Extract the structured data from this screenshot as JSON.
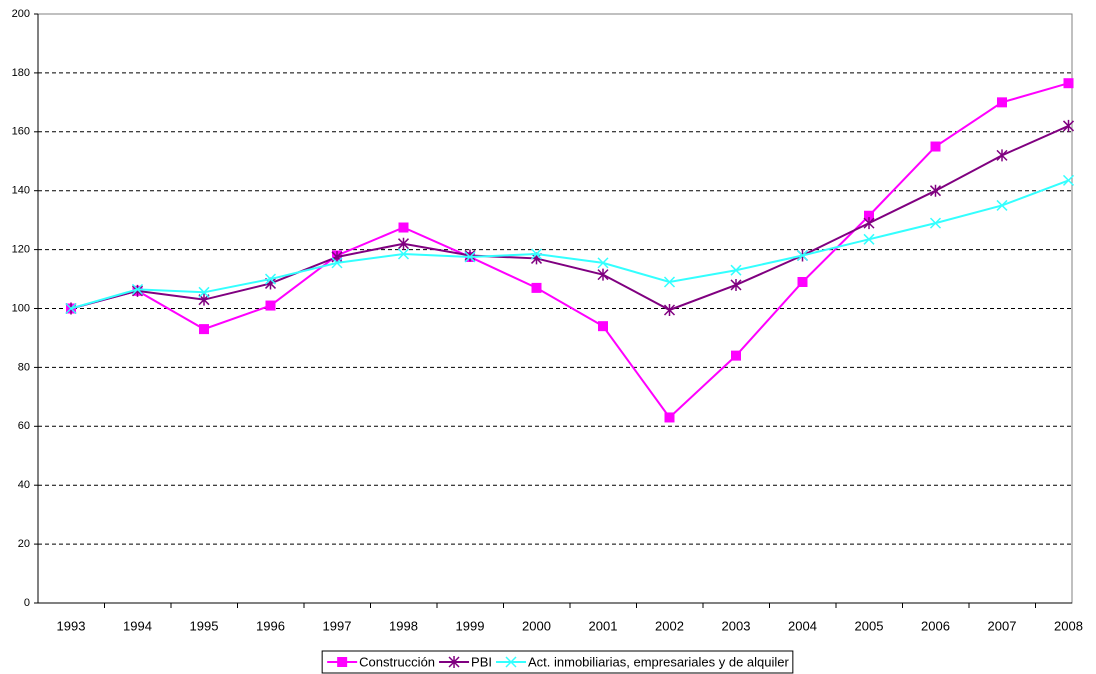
{
  "chart_data": {
    "type": "line",
    "categories": [
      "1993",
      "1994",
      "1995",
      "1996",
      "1997",
      "1998",
      "1999",
      "2000",
      "2001",
      "2002",
      "2003",
      "2004",
      "2005",
      "2006",
      "2007",
      "2008"
    ],
    "series": [
      {
        "name": "Construcción",
        "color": "#ff00ff",
        "marker": "square",
        "values": [
          100,
          106,
          93,
          101,
          118,
          127.5,
          117.5,
          107,
          94,
          63,
          84,
          109,
          131.5,
          155,
          170,
          176.5
        ]
      },
      {
        "name": "PBI",
        "color": "#800080",
        "marker": "star",
        "values": [
          100,
          106,
          103,
          108.5,
          117.5,
          122,
          118,
          117,
          111.5,
          99.5,
          108,
          118,
          129,
          140,
          152,
          162
        ]
      },
      {
        "name": "Act. inmobiliarias, empresariales y de alquiler",
        "color": "#33ffff",
        "marker": "x",
        "values": [
          100,
          106.5,
          105.5,
          110,
          115.5,
          118.5,
          117.5,
          118.5,
          115.5,
          109,
          113,
          118,
          123.5,
          129,
          135,
          143.5
        ]
      }
    ],
    "ylim": [
      0,
      200
    ],
    "yticks": [
      0,
      20,
      40,
      60,
      80,
      100,
      120,
      140,
      160,
      180,
      200
    ],
    "grid": true,
    "legend": "bottom"
  }
}
